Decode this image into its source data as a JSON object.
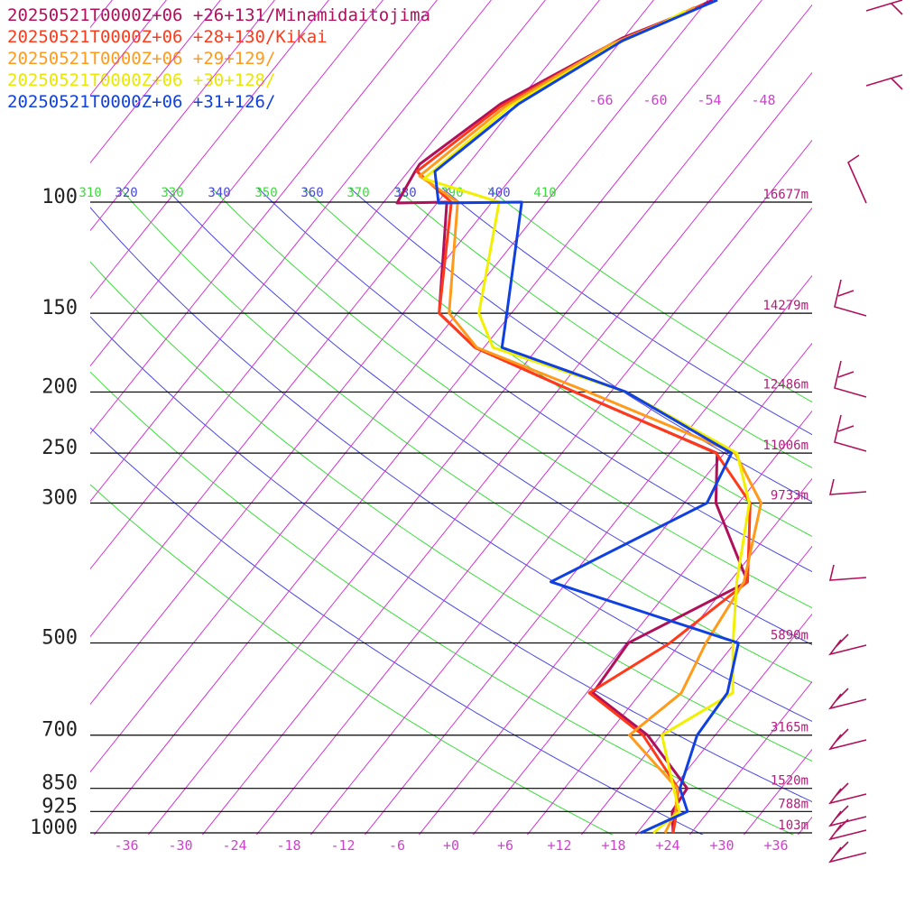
{
  "chart_data": {
    "type": "line",
    "title": "",
    "legend_placement": "top-left",
    "series": [
      {
        "name": "20250521T0000Z+06 +26+131/Minamidaitojima",
        "color": "#b0105a",
        "points": [
          [
            1000,
            24
          ],
          [
            925,
            22
          ],
          [
            850,
            21.6
          ],
          [
            700,
            12.5
          ],
          [
            600,
            2.7
          ],
          [
            500,
            2.2
          ],
          [
            400,
            10
          ],
          [
            300,
            -0.5
          ],
          [
            250,
            -4.8
          ],
          [
            200,
            -26
          ],
          [
            170,
            -41
          ],
          [
            150,
            -48
          ],
          [
            100,
            -57
          ]
        ]
      },
      {
        "name": "20250521T0000Z+06 +28+130/Kikai",
        "color": "#ff3a1a",
        "points": [
          [
            1000,
            24
          ],
          [
            925,
            22.5
          ],
          [
            850,
            20.6
          ],
          [
            700,
            12
          ],
          [
            600,
            2.3
          ],
          [
            500,
            6.8
          ],
          [
            400,
            10
          ],
          [
            300,
            3.3
          ],
          [
            250,
            -4.9
          ],
          [
            200,
            -26
          ],
          [
            170,
            -41
          ],
          [
            150,
            -48
          ],
          [
            100,
            -56.5
          ]
        ]
      },
      {
        "name": "20250521T0000Z+06 +29+129/",
        "color": "#ff9a1a",
        "points": [
          [
            1000,
            23.1
          ],
          [
            925,
            22.4
          ],
          [
            850,
            20.5
          ],
          [
            700,
            10.5
          ],
          [
            600,
            12.5
          ],
          [
            500,
            10.8
          ],
          [
            400,
            9.6
          ],
          [
            300,
            4.5
          ],
          [
            250,
            -2.8
          ],
          [
            200,
            -24.5
          ],
          [
            170,
            -40.8
          ],
          [
            150,
            -46.9
          ],
          [
            100,
            -55.8
          ]
        ]
      },
      {
        "name": "20250521T0000Z+06 +30+128/",
        "color": "#f0f000",
        "points": [
          [
            1000,
            21.8
          ],
          [
            925,
            22.8
          ],
          [
            850,
            20.1
          ],
          [
            700,
            14.1
          ],
          [
            600,
            18.2
          ],
          [
            500,
            13.8
          ],
          [
            400,
            8.8
          ],
          [
            300,
            3.2
          ],
          [
            250,
            -2.6
          ],
          [
            200,
            -20.3
          ],
          [
            170,
            -39
          ],
          [
            150,
            -43.6
          ],
          [
            100,
            -51.2
          ]
        ]
      },
      {
        "name": "20250521T0000Z+06 +31+126/",
        "color": "#1040e0",
        "points": [
          [
            1000,
            20.4
          ],
          [
            925,
            23.7
          ],
          [
            850,
            20.8
          ],
          [
            700,
            18
          ],
          [
            600,
            17.6
          ],
          [
            500,
            14.4
          ],
          [
            400,
            -11.8
          ],
          [
            300,
            -1.5
          ],
          [
            250,
            -3.2
          ],
          [
            200,
            -20.3
          ],
          [
            170,
            -38
          ],
          [
            150,
            -40.5
          ],
          [
            100,
            -48.7
          ]
        ]
      }
    ],
    "upper_curves": {
      "comment": "",
      "points_xy": [
        [
          [
            790,
            0
          ],
          [
            750,
            18
          ],
          [
            690,
            42
          ],
          [
            555,
            115
          ],
          [
            465,
            182
          ],
          [
            460,
            190
          ],
          [
            440,
            225
          ]
        ],
        [
          [
            780,
            5
          ],
          [
            740,
            22
          ],
          [
            680,
            48
          ],
          [
            555,
            118
          ],
          [
            462,
            190
          ]
        ],
        [
          [
            770,
            8
          ],
          [
            735,
            25
          ],
          [
            675,
            50
          ],
          [
            560,
            118
          ],
          [
            465,
            195
          ]
        ],
        [
          [
            760,
            12
          ],
          [
            730,
            28
          ],
          [
            680,
            50
          ],
          [
            565,
            118
          ],
          [
            470,
            198
          ]
        ],
        [
          [
            795,
            0
          ],
          [
            760,
            15
          ],
          [
            690,
            45
          ],
          [
            575,
            115
          ],
          [
            482,
            190
          ],
          [
            486,
            225
          ]
        ]
      ]
    },
    "pressure_levels": [
      {
        "p": 100,
        "label": "100",
        "height": "16677m"
      },
      {
        "p": 150,
        "label": "150",
        "height": "14279m"
      },
      {
        "p": 200,
        "label": "200",
        "height": "12486m"
      },
      {
        "p": 250,
        "label": "250",
        "height": "11006m"
      },
      {
        "p": 300,
        "label": "300",
        "height": "9733m"
      },
      {
        "p": 500,
        "label": "500",
        "height": "5890m"
      },
      {
        "p": 700,
        "label": "700",
        "height": "3165m"
      },
      {
        "p": 850,
        "label": "850",
        "height": "1520m"
      },
      {
        "p": 925,
        "label": "925",
        "height": "788m"
      },
      {
        "p": 1000,
        "label": "1000",
        "height": "103m"
      }
    ],
    "x_ticks": [
      "-36",
      "-30",
      "-24",
      "-18",
      "-12",
      "-6",
      "+0",
      "+6",
      "+12",
      "+18",
      "+24",
      "+30",
      "+36"
    ],
    "x_tick_values": [
      -36,
      -30,
      -24,
      -18,
      -12,
      -6,
      0,
      6,
      12,
      18,
      24,
      30,
      36
    ],
    "isotherm_top_labels": [
      "-66",
      "-60",
      "-54",
      "-48"
    ],
    "theta_labels": [
      {
        "text": "310",
        "color": "#3cdc3c"
      },
      {
        "text": "320",
        "color": "#4848e0"
      },
      {
        "text": "330",
        "color": "#3cdc3c"
      },
      {
        "text": "340",
        "color": "#4848e0"
      },
      {
        "text": "350",
        "color": "#3cdc3c"
      },
      {
        "text": "360",
        "color": "#4848e0"
      },
      {
        "text": "370",
        "color": "#3cdc3c"
      },
      {
        "text": "380",
        "color": "#4848e0"
      },
      {
        "text": "390",
        "color": "#3cdc3c"
      },
      {
        "text": "400",
        "color": "#4848e0"
      },
      {
        "text": "410",
        "color": "#3cdc3c"
      }
    ],
    "isotherm_color": "#d030d0",
    "isobar_color": "#000000",
    "dry_adiabat_colors": [
      "#3cdc3c",
      "#4848e0"
    ],
    "wind_barb_color": "#b0105a"
  }
}
